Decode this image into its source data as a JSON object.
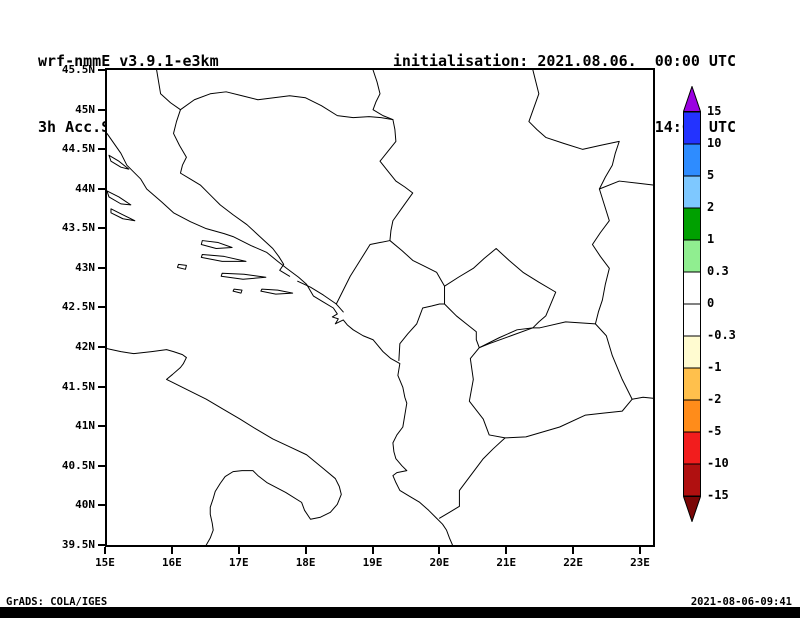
{
  "header": {
    "model": "wrf-nmmE_v3.9.1-e3km",
    "variable": "3h Acc.Snow [cm/3h]",
    "init": "initialisation: 2021.08.06.  00:00 UTC",
    "valid": "valid(+62h): 2021.AUG.08 14:00 UTC"
  },
  "map": {
    "y_ticks": [
      "45.5N",
      "45N",
      "44.5N",
      "44N",
      "43.5N",
      "43N",
      "42.5N",
      "42N",
      "41.5N",
      "41N",
      "40.5N",
      "40N",
      "39.5N"
    ],
    "x_ticks": [
      "15E",
      "16E",
      "17E",
      "18E",
      "19E",
      "20E",
      "21E",
      "22E",
      "23E"
    ]
  },
  "colorbar": {
    "labels": [
      "15",
      "10",
      "5",
      "2",
      "1",
      "0.3",
      "0",
      "-0.3",
      "-1",
      "-2",
      "-5",
      "-10",
      "-15"
    ],
    "top_arrow_color": "#9a00e1",
    "bottom_arrow_color": "#7a0606",
    "band_colors": [
      "#2333ff",
      "#2e8cff",
      "#7ec8ff",
      "#00a000",
      "#90ee90",
      "#ffffff",
      "#ffffff",
      "#fffbd0",
      "#ffc04c",
      "#ff8c1a",
      "#f21d1d",
      "#b01010"
    ]
  },
  "footer": {
    "left": "GrADS: COLA/IGES",
    "right": "2021-08-06-09:41"
  }
}
